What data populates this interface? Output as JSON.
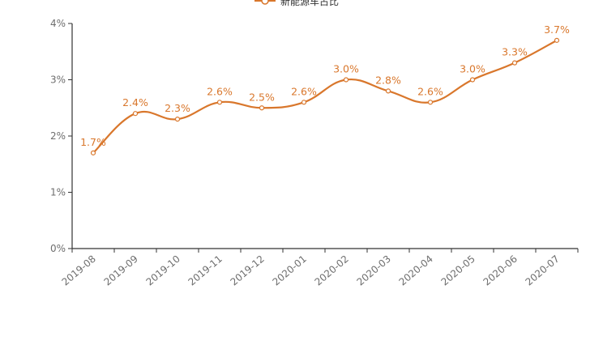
{
  "chart_data": {
    "type": "line",
    "categories": [
      "2019-08",
      "2019-09",
      "2019-10",
      "2019-11",
      "2019-12",
      "2020-01",
      "2020-02",
      "2020-03",
      "2020-04",
      "2020-05",
      "2020-06",
      "2020-07"
    ],
    "series": [
      {
        "name": "新能源车占比",
        "values": [
          1.7,
          2.4,
          2.3,
          2.6,
          2.5,
          2.6,
          3.0,
          2.8,
          2.6,
          3.0,
          3.3,
          3.7
        ],
        "data_labels": [
          "1.7%",
          "2.4%",
          "2.3%",
          "2.6%",
          "2.5%",
          "2.6%",
          "3.0%",
          "2.8%",
          "2.6%",
          "3.0%",
          "3.3%",
          "3.7%"
        ],
        "color": "#d9772c"
      }
    ],
    "yticks": [
      "0%",
      "1%",
      "2%",
      "3%",
      "4%"
    ],
    "ylim": [
      0,
      4
    ],
    "smooth": true,
    "legend_position": "top-center",
    "grid": false
  }
}
